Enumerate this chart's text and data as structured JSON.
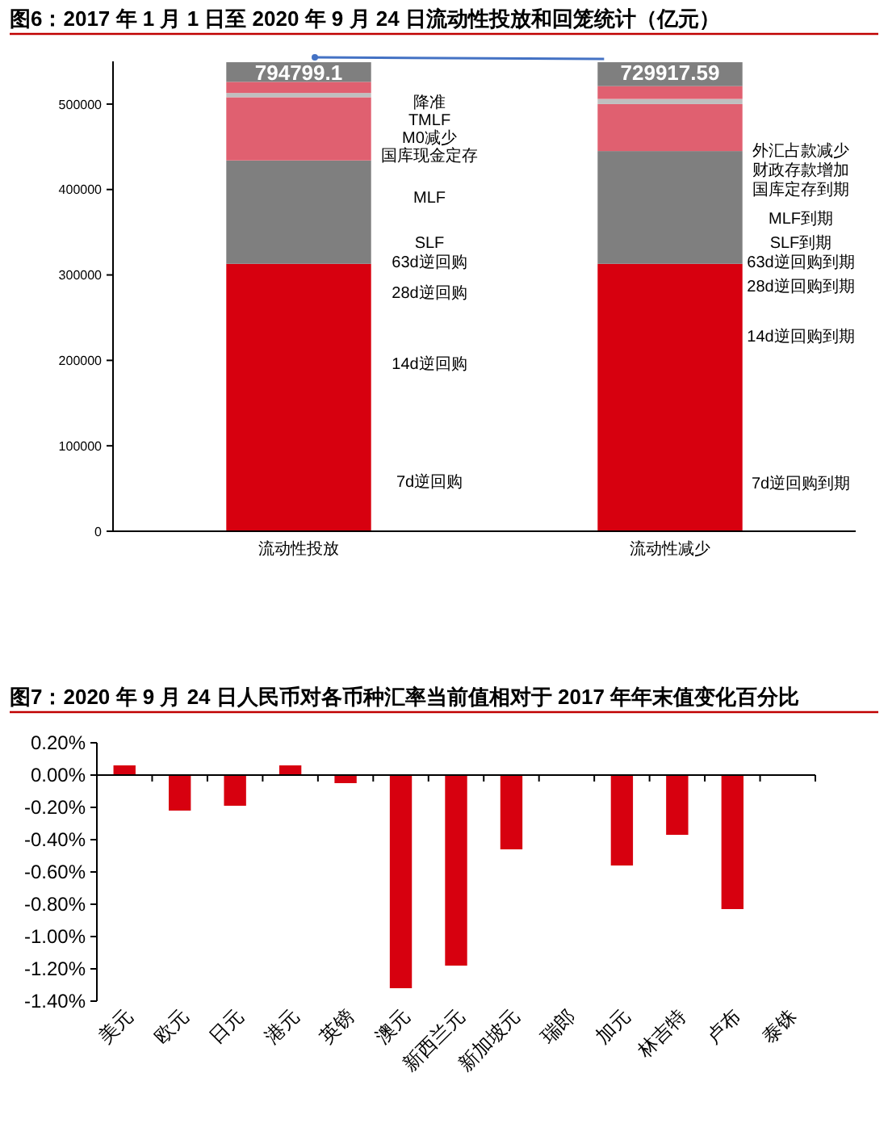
{
  "chart_data": [
    {
      "type": "bar",
      "title": "图6：2017 年 1 月 1 日至 2020 年 9 月 24 日流动性投放和回笼统计（亿元）",
      "categories": [
        "流动性投放",
        "流动性减少"
      ],
      "stacked": true,
      "series": [
        {
          "color": "#d7000f",
          "values": [
            313000,
            313000
          ]
        },
        {
          "color": "#7f7f7f",
          "values": [
            121000,
            132000
          ]
        },
        {
          "color": "#e06070",
          "values": [
            74000,
            55000
          ]
        },
        {
          "color": "#bfbfbf",
          "values": [
            5000,
            6000
          ]
        },
        {
          "color": "#e06070",
          "values": [
            13000,
            15000
          ]
        },
        {
          "color": "#7f7f7f",
          "values": [
            23000,
            28000
          ]
        }
      ],
      "ylim": [
        0,
        550000
      ],
      "yticks": [
        0,
        100000,
        200000,
        300000,
        400000,
        500000
      ],
      "annotations": [
        "降准",
        "TMLF",
        "M0减少",
        "国库现金定存",
        "MLF",
        "SLF",
        "63d逆回购",
        "28d逆回购",
        "14d逆回购",
        "7d逆回购",
        "外汇占款减少",
        "财政存款增加",
        "国库定存到期",
        "MLF到期",
        "SLF到期",
        "63d逆回购到期",
        "28d逆回购到期",
        "14d逆回购到期",
        "7d逆回购到期",
        "794799.1",
        "729917.59"
      ]
    },
    {
      "type": "bar",
      "title": "图7：2020 年 9 月 24 日人民币对各币种汇率当前值相对于 2017 年年末值变化百分比",
      "categories": [
        "美元",
        "欧元",
        "日元",
        "港元",
        "英镑",
        "澳元",
        "新西兰元",
        "新加坡元",
        "瑞郎",
        "加元",
        "林吉特",
        "卢布",
        "泰铢"
      ],
      "values": [
        0.06,
        -0.22,
        -0.19,
        0.06,
        -0.05,
        -1.32,
        -1.18,
        -0.46,
        null,
        -0.56,
        -0.37,
        -0.83,
        null
      ],
      "color": "#d7000f",
      "ylim": [
        -1.4,
        0.2
      ],
      "yticks": [
        {
          "value": 0.2,
          "label": "0.20%"
        },
        {
          "value": 0,
          "label": "0.00%"
        },
        {
          "value": -0.2,
          "label": "-0.20%"
        },
        {
          "value": -0.4,
          "label": "-0.40%"
        },
        {
          "value": -0.6,
          "label": "-0.60%"
        },
        {
          "value": -0.8,
          "label": "-0.80%"
        },
        {
          "value": -1,
          "label": "-1.00%"
        },
        {
          "value": -1.2,
          "label": "-1.20%"
        },
        {
          "value": -1.4,
          "label": "-1.40%"
        }
      ]
    }
  ]
}
